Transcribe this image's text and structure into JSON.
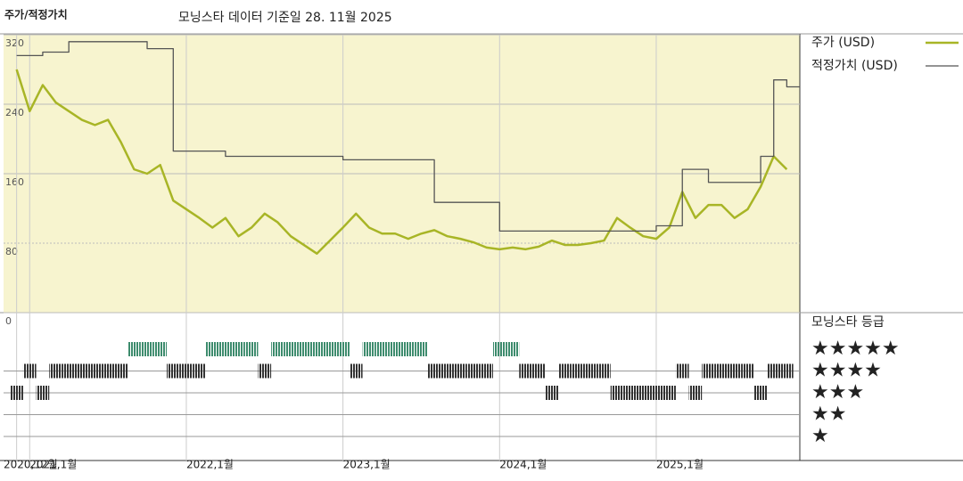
{
  "chart_data": {
    "type": "line",
    "title": "주가/적정가치",
    "subtitle": "모닝스타 데이터 기준일 28. 11월 2025",
    "x": [
      "2020-12",
      "2021-01",
      "2021-02",
      "2021-03",
      "2021-04",
      "2021-05",
      "2021-06",
      "2021-07",
      "2021-08",
      "2021-09",
      "2021-10",
      "2021-11",
      "2021-12",
      "2022-01",
      "2022-02",
      "2022-03",
      "2022-04",
      "2022-05",
      "2022-06",
      "2022-07",
      "2022-08",
      "2022-09",
      "2022-10",
      "2022-11",
      "2022-12",
      "2023-01",
      "2023-02",
      "2023-03",
      "2023-04",
      "2023-05",
      "2023-06",
      "2023-07",
      "2023-08",
      "2023-09",
      "2023-10",
      "2023-11",
      "2023-12",
      "2024-01",
      "2024-02",
      "2024-03",
      "2024-04",
      "2024-05",
      "2024-06",
      "2024-07",
      "2024-08",
      "2024-09",
      "2024-10",
      "2024-11",
      "2024-12",
      "2025-01",
      "2025-02",
      "2025-03",
      "2025-04",
      "2025-05",
      "2025-06",
      "2025-07",
      "2025-08",
      "2025-09",
      "2025-10",
      "2025-11"
    ],
    "xlim": [
      "2020-11",
      "2025-12"
    ],
    "xticks": [
      {
        "value": "2020-12",
        "label": "2020,12월"
      },
      {
        "value": "2021-01",
        "label": "2021,1월"
      },
      {
        "value": "2022-01",
        "label": "2022,1월"
      },
      {
        "value": "2023-01",
        "label": "2023,1월"
      },
      {
        "value": "2024-01",
        "label": "2024,1월"
      },
      {
        "value": "2025-01",
        "label": "2025,1월"
      }
    ],
    "ylim": [
      0,
      320
    ],
    "yticks": [
      0,
      80,
      160,
      240,
      320
    ],
    "grid": true,
    "background": "#f7f4cf",
    "series": [
      {
        "name": "주가 (USD)",
        "color": "#a8b526",
        "values": [
          280,
          232,
          262,
          242,
          232,
          222,
          216,
          222,
          196,
          165,
          160,
          170,
          129,
          119,
          109,
          98,
          109,
          88,
          98,
          114,
          104,
          88,
          78,
          68,
          83,
          98,
          114,
          98,
          91,
          91,
          85,
          91,
          95,
          88,
          85,
          81,
          75,
          73,
          75,
          73,
          76,
          83,
          78,
          78,
          80,
          83,
          109,
          98,
          88,
          85,
          98,
          139,
          109,
          124,
          124,
          109,
          119,
          145,
          180,
          165
        ]
      },
      {
        "name": "적정가치 (USD)",
        "color": "#555555",
        "step": true,
        "values": [
          296,
          296,
          300,
          300,
          312,
          312,
          312,
          312,
          312,
          312,
          304,
          304,
          186,
          186,
          186,
          186,
          180,
          180,
          180,
          180,
          180,
          180,
          180,
          180,
          180,
          176,
          176,
          176,
          176,
          176,
          176,
          176,
          127,
          127,
          127,
          127,
          127,
          94,
          94,
          94,
          94,
          94,
          94,
          94,
          94,
          94,
          94,
          94,
          94,
          100,
          100,
          165,
          165,
          150,
          150,
          150,
          150,
          180,
          268,
          260
        ]
      }
    ],
    "rating": {
      "title": "모닝스타 등급",
      "labels": [
        "★★★★★",
        "★★★★",
        "★★★",
        "★★",
        "★"
      ],
      "levels": [
        5,
        4,
        3,
        2,
        1
      ],
      "color": "#333333",
      "top_color": "#3e8c6e",
      "values": [
        3,
        4,
        3,
        4,
        4,
        4,
        4,
        4,
        4,
        5,
        5,
        5,
        4,
        4,
        4,
        5,
        5,
        5,
        5,
        4,
        5,
        5,
        5,
        5,
        5,
        5,
        4,
        5,
        5,
        5,
        5,
        5,
        4,
        4,
        4,
        4,
        4,
        5,
        5,
        4,
        4,
        3,
        4,
        4,
        4,
        4,
        3,
        3,
        3,
        3,
        3,
        4,
        3,
        4,
        4,
        4,
        4,
        3,
        4,
        4
      ]
    }
  }
}
